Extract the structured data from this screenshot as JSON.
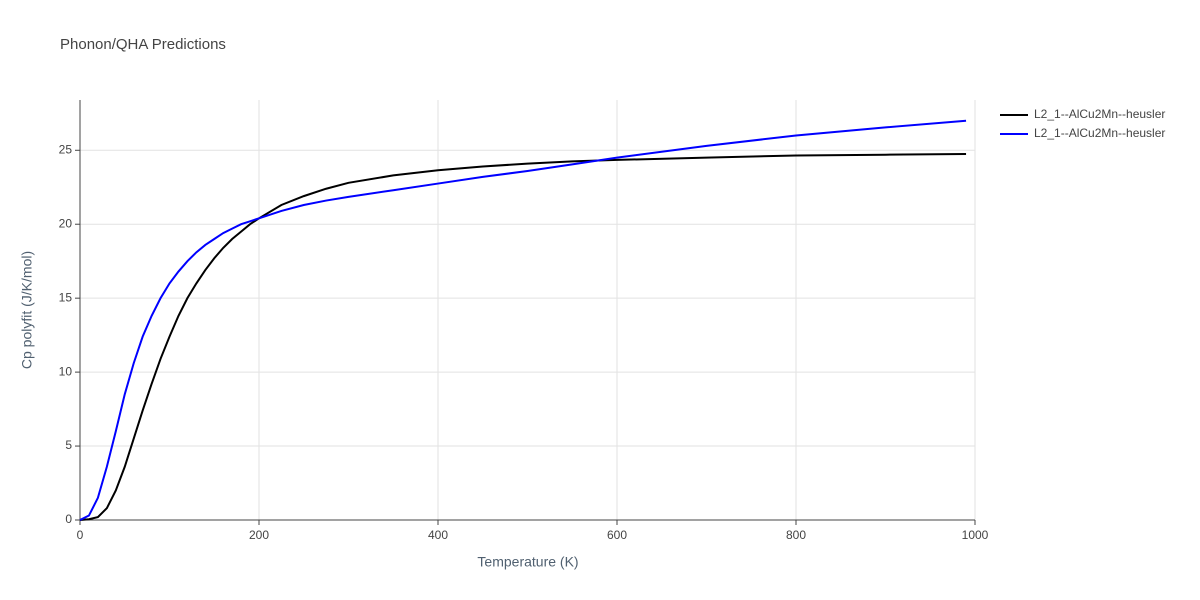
{
  "chart_data": {
    "type": "line",
    "title": "Phonon/QHA Predictions",
    "x_label": "Temperature (K)",
    "y_label": "Cp polyfit (J/K/mol)",
    "x": [
      0,
      10,
      20,
      30,
      40,
      50,
      60,
      70,
      80,
      90,
      100,
      110,
      120,
      130,
      140,
      150,
      160,
      170,
      180,
      190,
      200,
      225,
      250,
      275,
      300,
      350,
      400,
      450,
      500,
      550,
      600,
      700,
      800,
      900,
      990
    ],
    "series": [
      {
        "name": "L2_1--AlCu2Mn--heusler",
        "color": "#000000",
        "values": [
          0,
          0.05,
          0.2,
          0.8,
          2.0,
          3.6,
          5.5,
          7.4,
          9.2,
          10.9,
          12.4,
          13.8,
          15.0,
          16.0,
          16.9,
          17.7,
          18.4,
          19.0,
          19.5,
          20.0,
          20.4,
          21.3,
          21.9,
          22.4,
          22.8,
          23.3,
          23.65,
          23.9,
          24.1,
          24.25,
          24.35,
          24.5,
          24.65,
          24.7,
          24.75
        ]
      },
      {
        "name": "L2_1--AlCu2Mn--heusler",
        "color": "#0000ff",
        "values": [
          0,
          0.3,
          1.5,
          3.6,
          6.0,
          8.5,
          10.6,
          12.4,
          13.8,
          15.0,
          16.0,
          16.8,
          17.5,
          18.1,
          18.6,
          19.0,
          19.4,
          19.7,
          20.0,
          20.2,
          20.4,
          20.9,
          21.3,
          21.6,
          21.85,
          22.3,
          22.75,
          23.2,
          23.6,
          24.05,
          24.5,
          25.3,
          26.0,
          26.55,
          27.0
        ]
      }
    ],
    "xlim": [
      0,
      1000
    ],
    "xticks": [
      0,
      200,
      400,
      600,
      800,
      1000
    ],
    "ylim": [
      0,
      28.4
    ],
    "yticks": [
      0,
      5,
      10,
      15,
      20,
      25
    ],
    "grid": true,
    "legend": "top-right"
  }
}
